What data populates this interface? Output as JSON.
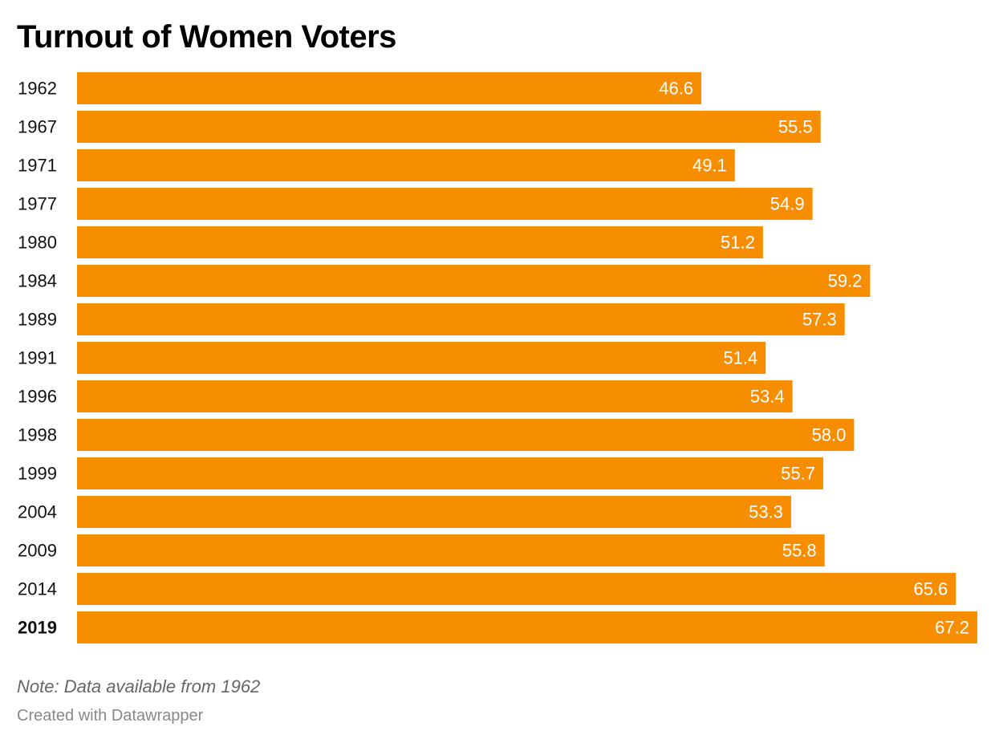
{
  "title": "Turnout of Women Voters",
  "note": "Note: Data available from 1962",
  "credit": "Created with Datawrapper",
  "colors": {
    "bar": "#F78D00",
    "bar_label": "#ffffff",
    "category_label": "#111111"
  },
  "chart_data": {
    "type": "bar",
    "orientation": "horizontal",
    "title": "Turnout of Women Voters",
    "xlabel": "",
    "ylabel": "",
    "grid": false,
    "categories": [
      "1962",
      "1967",
      "1971",
      "1977",
      "1980",
      "1984",
      "1989",
      "1991",
      "1996",
      "1998",
      "1999",
      "2004",
      "2009",
      "2014",
      "2019"
    ],
    "values": [
      46.6,
      55.5,
      49.1,
      54.9,
      51.2,
      59.2,
      57.3,
      51.4,
      53.4,
      58.0,
      55.7,
      53.3,
      55.8,
      65.6,
      67.2
    ],
    "value_labels": [
      "46.6",
      "55.5",
      "49.1",
      "54.9",
      "51.2",
      "59.2",
      "57.3",
      "51.4",
      "53.4",
      "58.0",
      "55.7",
      "53.3",
      "55.8",
      "65.6",
      "67.2"
    ],
    "highlighted_category": "2019",
    "xlim": [
      0,
      67.2
    ]
  }
}
